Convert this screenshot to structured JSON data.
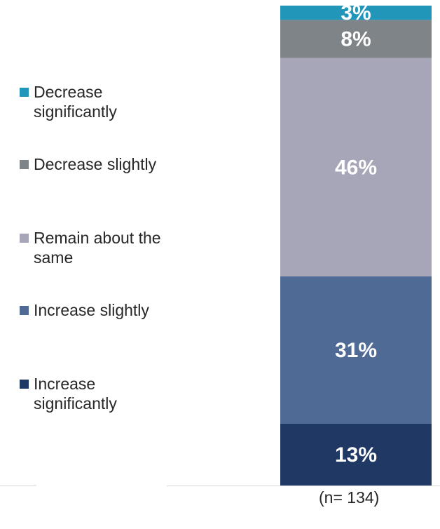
{
  "chart_data": {
    "type": "bar",
    "stacked": true,
    "orientation": "vertical",
    "ylim": [
      0,
      100
    ],
    "series": [
      {
        "name": "Increase significantly",
        "values": [
          13
        ],
        "label": "13%",
        "color": "#203864"
      },
      {
        "name": "Increase slightly",
        "values": [
          31
        ],
        "label": "31%",
        "color": "#4e6a95"
      },
      {
        "name": "Remain about the same",
        "values": [
          46
        ],
        "label": "46%",
        "color": "#a6a6b8"
      },
      {
        "name": "Decrease slightly",
        "values": [
          8
        ],
        "label": "8%",
        "color": "#7f8489"
      },
      {
        "name": "Decrease significantly",
        "values": [
          3
        ],
        "label": "3%",
        "color": "#2196b8"
      }
    ],
    "legend": {
      "position": "left",
      "order": [
        {
          "label": "Decrease significantly",
          "color": "#2196b8"
        },
        {
          "label": "Decrease slightly",
          "color": "#7f8489"
        },
        {
          "label": "Remain about the same",
          "color": "#a6a6b8"
        },
        {
          "label": "Increase slightly",
          "color": "#4e6a95"
        },
        {
          "label": "Increase significantly",
          "color": "#203864"
        }
      ]
    },
    "note": "(n= 134)",
    "grid": false
  }
}
